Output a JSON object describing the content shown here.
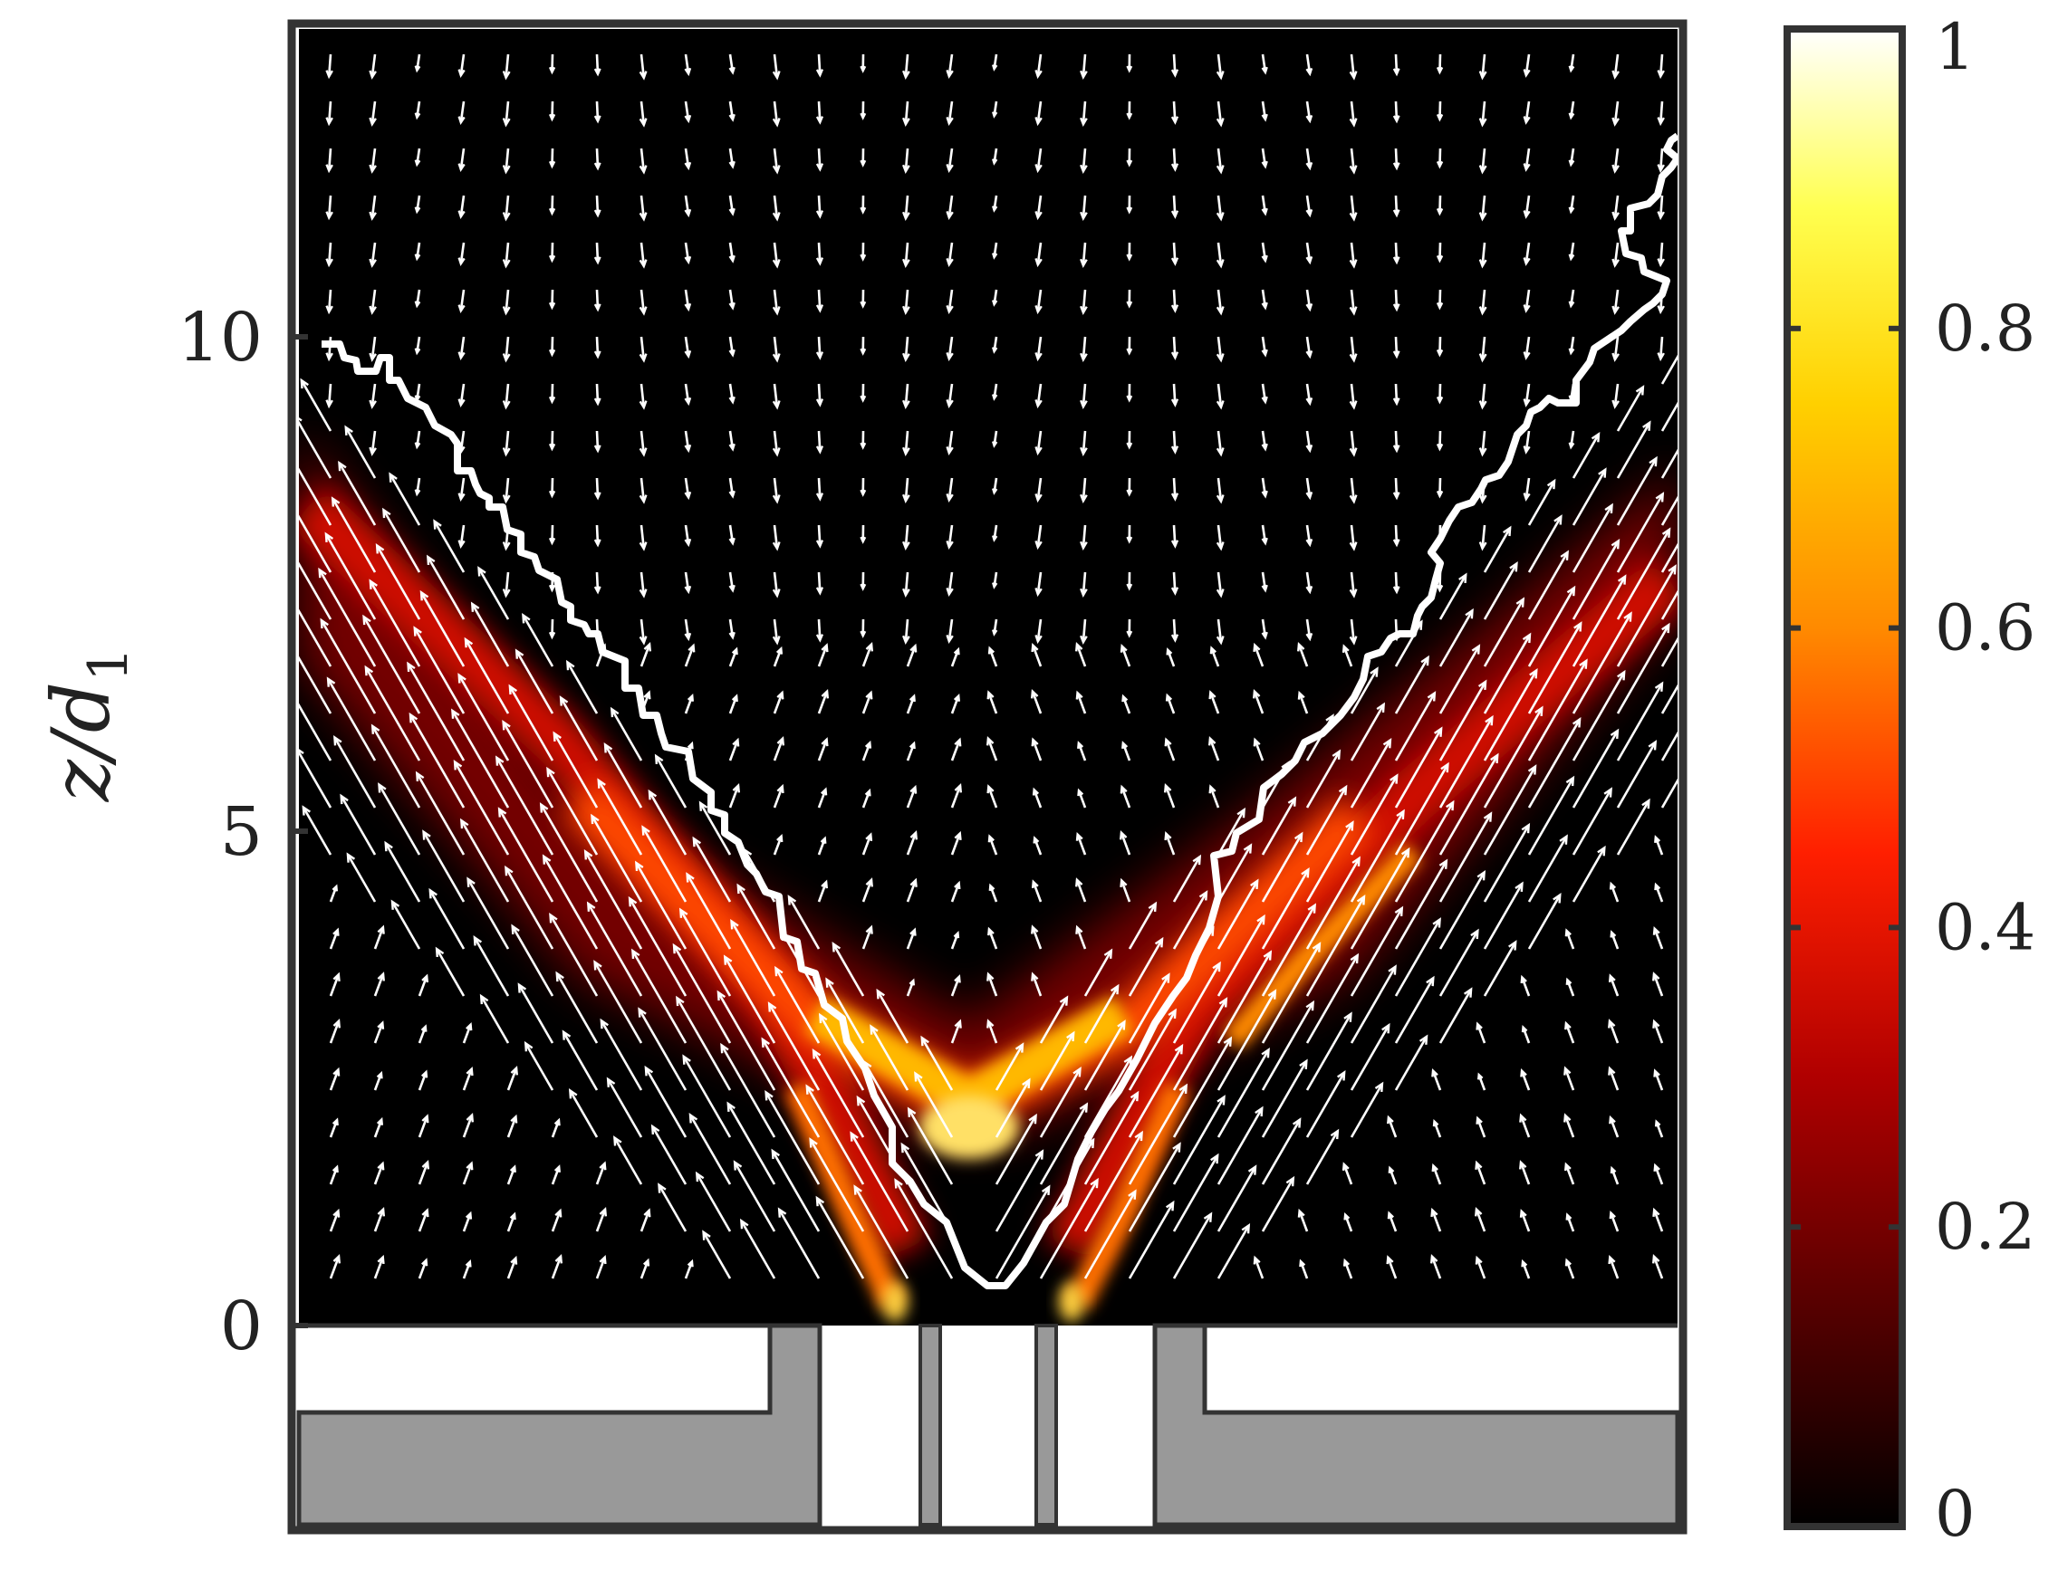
{
  "chart_data": {
    "type": "heatmap",
    "title": "",
    "xlabel": "",
    "ylabel": "z/d",
    "ylabel_subscript": "1",
    "y_ticks": [
      {
        "value": 0,
        "label": "0"
      },
      {
        "value": 5,
        "label": "5"
      },
      {
        "value": 10,
        "label": "10"
      }
    ],
    "ylim": [
      -2.0,
      13.0
    ],
    "colorbar": {
      "colormap": "hot",
      "range": [
        0,
        1
      ],
      "ticks": [
        {
          "value": 0,
          "label": "0"
        },
        {
          "value": 0.2,
          "label": "0.2"
        },
        {
          "value": 0.4,
          "label": "0.4"
        },
        {
          "value": 0.6,
          "label": "0.6"
        },
        {
          "value": 0.8,
          "label": "0.8"
        },
        {
          "value": 1,
          "label": "1"
        }
      ]
    },
    "overlays": [
      "velocity vector field (white arrows)",
      "white contour outline (V shape)",
      "gray nozzle geometry below z/d1 = 0"
    ],
    "colors": {
      "frame": "#333333",
      "nozzle": "#999999",
      "field_background": "#000000",
      "arrows": "#ffffff"
    }
  }
}
